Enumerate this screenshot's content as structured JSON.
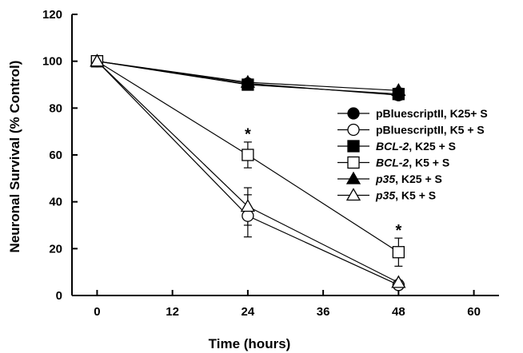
{
  "chart_data": {
    "type": "line",
    "title": "",
    "xlabel": "Time (hours)",
    "ylabel": "Neuronal Survival (% Control)",
    "xlim": [
      -4,
      64
    ],
    "ylim": [
      0,
      120
    ],
    "xticks": [
      0,
      12,
      24,
      36,
      48,
      60
    ],
    "yticks": [
      0,
      20,
      40,
      60,
      80,
      100,
      120
    ],
    "x": [
      0,
      24,
      48
    ],
    "legend_position": "right",
    "series": [
      {
        "name": "pBluescriptII, K25+ S",
        "name_parts": [
          {
            "text": "pBluescriptII",
            "italic": false
          },
          {
            "text": ", K25+ S",
            "italic": false
          }
        ],
        "marker": "circle",
        "filled": true,
        "values": [
          100,
          90.5,
          85.5
        ],
        "errors": [
          0,
          1,
          2
        ]
      },
      {
        "name": "pBluescriptII, K5 + S",
        "name_parts": [
          {
            "text": "pBluescriptII",
            "italic": false
          },
          {
            "text": ", K5 + S",
            "italic": false
          }
        ],
        "marker": "circle",
        "filled": false,
        "values": [
          100,
          34,
          4.5
        ],
        "errors": [
          0,
          9,
          1
        ]
      },
      {
        "name": "BCL-2, K25 + S",
        "name_parts": [
          {
            "text": "BCL-2",
            "italic": true
          },
          {
            "text": ", K25 + S",
            "italic": false
          }
        ],
        "marker": "square",
        "filled": true,
        "values": [
          100,
          90,
          86
        ],
        "errors": [
          0,
          1,
          1.5
        ]
      },
      {
        "name": "BCL-2, K5 + S",
        "name_parts": [
          {
            "text": "BCL-2",
            "italic": true
          },
          {
            "text": ", K5 + S",
            "italic": false
          }
        ],
        "marker": "square",
        "filled": false,
        "values": [
          100,
          60,
          18.5
        ],
        "errors": [
          0,
          5.5,
          6
        ]
      },
      {
        "name": "p35, K25 + S",
        "name_parts": [
          {
            "text": "p35",
            "italic": true
          },
          {
            "text": ", K25 + S",
            "italic": false
          }
        ],
        "marker": "triangle",
        "filled": true,
        "values": [
          100,
          91,
          87.5
        ],
        "errors": [
          0,
          1,
          1
        ]
      },
      {
        "name": "p35, K5 + S",
        "name_parts": [
          {
            "text": "p35",
            "italic": true
          },
          {
            "text": ", K5 + S",
            "italic": false
          }
        ],
        "marker": "triangle",
        "filled": false,
        "values": [
          100,
          38,
          5.5
        ],
        "errors": [
          0,
          8,
          1
        ]
      }
    ],
    "annotations": [
      {
        "text": "*",
        "x": 24,
        "y": 70
      },
      {
        "text": "*",
        "x": 48,
        "y": 29
      }
    ]
  }
}
